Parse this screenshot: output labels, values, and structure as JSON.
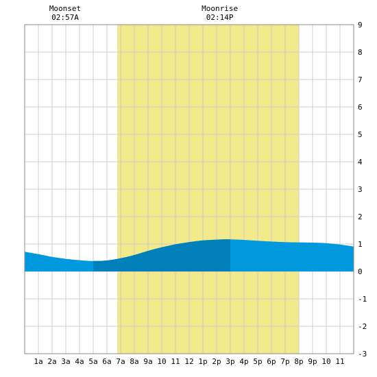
{
  "chart_data": {
    "type": "area",
    "annotations": [
      {
        "label": "Moonset",
        "time": "02:57A",
        "hour": 2.95
      },
      {
        "label": "Moonrise",
        "time": "02:14P",
        "hour": 14.23
      }
    ],
    "daylight": {
      "start_hour": 6.75,
      "end_hour": 20.0
    },
    "x_tick_labels": [
      "1a",
      "2a",
      "3a",
      "4a",
      "5a",
      "6a",
      "7a",
      "8a",
      "9a",
      "10",
      "11",
      "12",
      "1p",
      "2p",
      "3p",
      "4p",
      "5p",
      "6p",
      "7p",
      "8p",
      "9p",
      "10",
      "11"
    ],
    "xlim": [
      0,
      24
    ],
    "ylim": [
      -3,
      9
    ],
    "y_tick_labels": [
      "9",
      "8",
      "7",
      "6",
      "5",
      "4",
      "3",
      "2",
      "1",
      "0",
      "-1",
      "-2",
      "-3"
    ],
    "grid": true,
    "series": [
      {
        "x": [
          0,
          1,
          2,
          3,
          4,
          5,
          6,
          7,
          8,
          9,
          10,
          11,
          12,
          13,
          14,
          15,
          16,
          17,
          18,
          19,
          20,
          21,
          22,
          23,
          24
        ],
        "values": [
          0.72,
          0.63,
          0.53,
          0.46,
          0.41,
          0.38,
          0.4,
          0.48,
          0.6,
          0.75,
          0.88,
          0.99,
          1.07,
          1.13,
          1.16,
          1.17,
          1.15,
          1.12,
          1.09,
          1.07,
          1.06,
          1.05,
          1.03,
          0.98,
          0.91
        ]
      }
    ],
    "highlight_range": {
      "start_hour": 5,
      "end_hour": 15
    },
    "colors": {
      "tide": "#0099dd",
      "tide_highlight": "#0080bb",
      "daylight": "#f2ea8a",
      "grid": "#cccccc",
      "frame": "#888888"
    }
  }
}
